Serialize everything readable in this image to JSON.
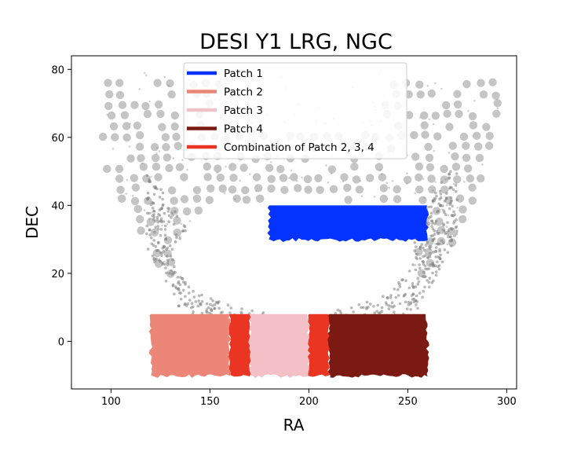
{
  "chart_data": {
    "type": "scatter",
    "title": "DESI Y1 LRG, NGC",
    "xlabel": "RA",
    "ylabel": "DEC",
    "xlim": [
      80,
      305
    ],
    "ylim": [
      -14,
      84
    ],
    "xticks": [
      100,
      150,
      200,
      250,
      300
    ],
    "yticks": [
      0,
      20,
      40,
      60,
      80
    ],
    "legend_position": "upper-center",
    "background_footprint": {
      "name": "DESI Y1 LRG footprint",
      "color": "#7f7f7f",
      "ra_range": [
        93,
        297
      ],
      "dec_range": [
        -2,
        79
      ]
    },
    "series": [
      {
        "name": "Patch 1",
        "color": "#0433ff",
        "ra_range": [
          180,
          260
        ],
        "dec_range": [
          30,
          40
        ]
      },
      {
        "name": "Patch 2",
        "color": "#ec8678",
        "ra_range": [
          120,
          160
        ],
        "dec_range": [
          -10,
          8
        ]
      },
      {
        "name": "Patch 3",
        "color": "#f4c0c8",
        "ra_range": [
          170,
          200
        ],
        "dec_range": [
          -10,
          8
        ]
      },
      {
        "name": "Patch 4",
        "color": "#7a1a12",
        "ra_range": [
          210,
          260
        ],
        "dec_range": [
          -10,
          8
        ]
      },
      {
        "name": "Combination of Patch 2, 3, 4",
        "color": "#ea3522",
        "ra_ranges": [
          [
            160,
            170
          ],
          [
            200,
            210
          ]
        ],
        "dec_range": [
          -10,
          8
        ]
      }
    ]
  }
}
